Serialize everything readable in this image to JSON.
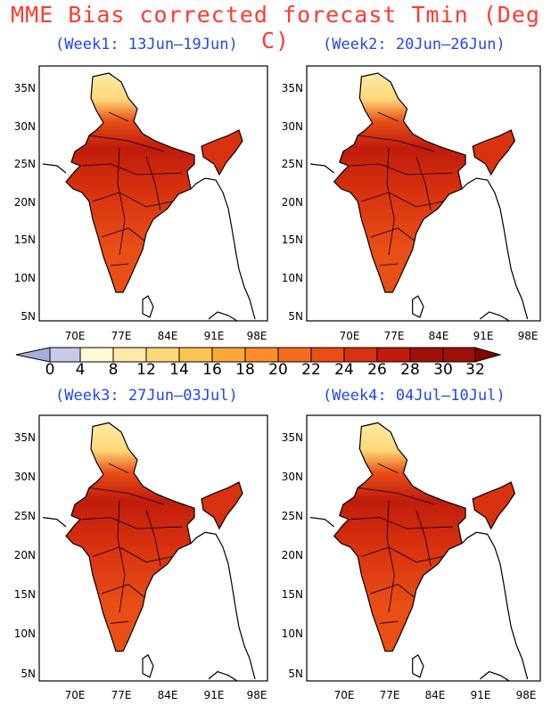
{
  "title": "MME Bias corrected forecast Tmin (Deg C)",
  "colors": {
    "title": "#ff3b30",
    "subtitle": "#2146f0",
    "tmin_scale": [
      "#a8aedc",
      "#c7cbe8",
      "#fff9d6",
      "#ffeaa6",
      "#ffd87a",
      "#ffc352",
      "#ffa83a",
      "#ff8c2a",
      "#f46c1e",
      "#e84e16",
      "#d93210",
      "#c01c0c",
      "#a01008",
      "#800404"
    ]
  },
  "colorbar": {
    "labels": [
      "0",
      "4",
      "8",
      "12",
      "14",
      "16",
      "18",
      "20",
      "22",
      "24",
      "26",
      "28",
      "30",
      "32"
    ]
  },
  "panels": [
    {
      "subtitle": "(Week1: 13Jun–19Jun)",
      "x_ticks": [
        "70E",
        "77E",
        "84E",
        "91E",
        "98E"
      ],
      "y_ticks": [
        "35N",
        "30N",
        "25N",
        "20N",
        "15N",
        "10N",
        "5N"
      ]
    },
    {
      "subtitle": "(Week2: 20Jun–26Jun)",
      "x_ticks": [
        "70E",
        "77E",
        "84E",
        "91E",
        "98E"
      ],
      "y_ticks": [
        "35N",
        "30N",
        "25N",
        "20N",
        "15N",
        "10N",
        "5N"
      ]
    },
    {
      "subtitle": "(Week3: 27Jun–03Jul)",
      "x_ticks": [
        "70E",
        "77E",
        "84E",
        "91E",
        "98E"
      ],
      "y_ticks": [
        "35N",
        "30N",
        "25N",
        "20N",
        "15N",
        "10N",
        "5N"
      ]
    },
    {
      "subtitle": "(Week4: 04Jul–10Jul)",
      "x_ticks": [
        "70E",
        "77E",
        "84E",
        "91E",
        "98E"
      ],
      "y_ticks": [
        "35N",
        "30N",
        "25N",
        "20N",
        "15N",
        "10N",
        "5N"
      ]
    }
  ]
}
